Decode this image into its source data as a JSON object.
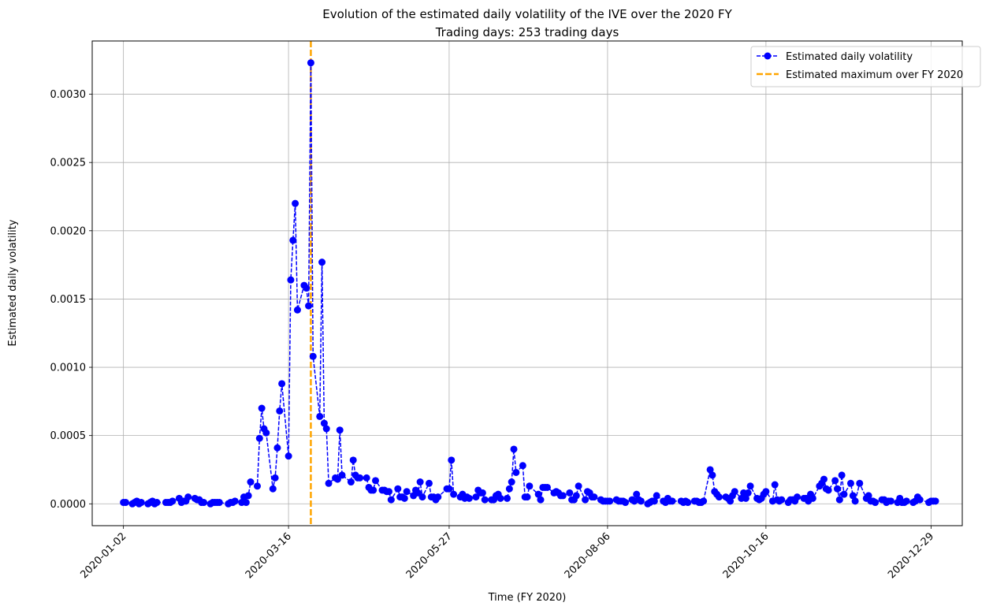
{
  "chart_data": {
    "type": "line",
    "title": "Evolution of the estimated daily volatility of the IVE over the 2020 FY",
    "subtitle": "Trading days: 253 trading days",
    "xlabel": "Time (FY 2020)",
    "ylabel": "Estimated daily volatility",
    "xlim": [
      "2019-12-19",
      "2021-01-12"
    ],
    "ylim": [
      -0.00016,
      0.00339
    ],
    "grid": true,
    "legend_position": "top-right",
    "x_ticks": [
      "2020-01-02",
      "2020-03-16",
      "2020-05-27",
      "2020-08-06",
      "2020-10-16",
      "2020-12-29"
    ],
    "y_ticks": [
      "0.0000",
      "0.0005",
      "0.0010",
      "0.0015",
      "0.0020",
      "0.0025",
      "0.0030"
    ],
    "series": [
      {
        "name": "Estimated daily volatility",
        "color": "#0000ff",
        "style": "dashed",
        "marker": "circle",
        "points": [
          [
            "2020-01-02",
            1e-05
          ],
          [
            "2020-01-03",
            1e-05
          ],
          [
            "2020-01-06",
            0.0
          ],
          [
            "2020-01-07",
            1e-05
          ],
          [
            "2020-01-08",
            2e-05
          ],
          [
            "2020-01-09",
            0.0
          ],
          [
            "2020-01-10",
            1e-05
          ],
          [
            "2020-01-13",
            0.0
          ],
          [
            "2020-01-14",
            1e-05
          ],
          [
            "2020-01-15",
            2e-05
          ],
          [
            "2020-01-16",
            0.0
          ],
          [
            "2020-01-17",
            1e-05
          ],
          [
            "2020-01-21",
            1e-05
          ],
          [
            "2020-01-22",
            1e-05
          ],
          [
            "2020-01-23",
            1e-05
          ],
          [
            "2020-01-24",
            2e-05
          ],
          [
            "2020-01-27",
            4e-05
          ],
          [
            "2020-01-28",
            1e-05
          ],
          [
            "2020-01-29",
            2e-05
          ],
          [
            "2020-01-30",
            2e-05
          ],
          [
            "2020-01-31",
            5e-05
          ],
          [
            "2020-02-03",
            4e-05
          ],
          [
            "2020-02-04",
            3e-05
          ],
          [
            "2020-02-05",
            3e-05
          ],
          [
            "2020-02-06",
            1e-05
          ],
          [
            "2020-02-07",
            1e-05
          ],
          [
            "2020-02-10",
            0.0
          ],
          [
            "2020-02-11",
            1e-05
          ],
          [
            "2020-02-12",
            1e-05
          ],
          [
            "2020-02-13",
            1e-05
          ],
          [
            "2020-02-14",
            1e-05
          ],
          [
            "2020-02-18",
            0.0
          ],
          [
            "2020-02-19",
            1e-05
          ],
          [
            "2020-02-20",
            1e-05
          ],
          [
            "2020-02-21",
            2e-05
          ],
          [
            "2020-02-24",
            1e-05
          ],
          [
            "2020-02-25",
            5e-05
          ],
          [
            "2020-02-26",
            1e-05
          ],
          [
            "2020-02-27",
            6e-05
          ],
          [
            "2020-02-28",
            0.00016
          ],
          [
            "2020-03-02",
            0.00013
          ],
          [
            "2020-03-03",
            0.00048
          ],
          [
            "2020-03-04",
            0.0007
          ],
          [
            "2020-03-05",
            0.00055
          ],
          [
            "2020-03-06",
            0.00052
          ],
          [
            "2020-03-09",
            0.00011
          ],
          [
            "2020-03-10",
            0.00019
          ],
          [
            "2020-03-11",
            0.00041
          ],
          [
            "2020-03-12",
            0.00068
          ],
          [
            "2020-03-13",
            0.00088
          ],
          [
            "2020-03-16",
            0.00035
          ],
          [
            "2020-03-17",
            0.00164
          ],
          [
            "2020-03-18",
            0.00193
          ],
          [
            "2020-03-19",
            0.0022
          ],
          [
            "2020-03-20",
            0.00142
          ],
          [
            "2020-03-23",
            0.0016
          ],
          [
            "2020-03-24",
            0.00158
          ],
          [
            "2020-03-25",
            0.00145
          ],
          [
            "2020-03-26",
            0.00323
          ],
          [
            "2020-03-27",
            0.00108
          ],
          [
            "2020-03-30",
            0.00064
          ],
          [
            "2020-03-31",
            0.00177
          ],
          [
            "2020-04-01",
            0.00059
          ],
          [
            "2020-04-02",
            0.00055
          ],
          [
            "2020-04-03",
            0.00015
          ],
          [
            "2020-04-06",
            0.00019
          ],
          [
            "2020-04-07",
            0.00018
          ],
          [
            "2020-04-08",
            0.00054
          ],
          [
            "2020-04-09",
            0.00021
          ],
          [
            "2020-04-13",
            0.00016
          ],
          [
            "2020-04-14",
            0.00032
          ],
          [
            "2020-04-15",
            0.00021
          ],
          [
            "2020-04-16",
            0.00019
          ],
          [
            "2020-04-17",
            0.00019
          ],
          [
            "2020-04-20",
            0.00019
          ],
          [
            "2020-04-21",
            0.00012
          ],
          [
            "2020-04-22",
            0.0001
          ],
          [
            "2020-04-23",
            0.0001
          ],
          [
            "2020-04-24",
            0.00017
          ],
          [
            "2020-04-27",
            0.0001
          ],
          [
            "2020-04-28",
            0.0001
          ],
          [
            "2020-04-29",
            9e-05
          ],
          [
            "2020-04-30",
            9e-05
          ],
          [
            "2020-05-01",
            3e-05
          ],
          [
            "2020-05-04",
            0.00011
          ],
          [
            "2020-05-05",
            5e-05
          ],
          [
            "2020-05-06",
            5e-05
          ],
          [
            "2020-05-07",
            4e-05
          ],
          [
            "2020-05-08",
            9e-05
          ],
          [
            "2020-05-11",
            6e-05
          ],
          [
            "2020-05-12",
            0.0001
          ],
          [
            "2020-05-13",
            8e-05
          ],
          [
            "2020-05-14",
            0.00016
          ],
          [
            "2020-05-15",
            5e-05
          ],
          [
            "2020-05-18",
            0.00015
          ],
          [
            "2020-05-19",
            5e-05
          ],
          [
            "2020-05-20",
            5e-05
          ],
          [
            "2020-05-21",
            3e-05
          ],
          [
            "2020-05-22",
            5e-05
          ],
          [
            "2020-05-26",
            0.00011
          ],
          [
            "2020-05-27",
            0.00011
          ],
          [
            "2020-05-28",
            0.00032
          ],
          [
            "2020-05-29",
            7e-05
          ],
          [
            "2020-06-01",
            5e-05
          ],
          [
            "2020-06-02",
            7e-05
          ],
          [
            "2020-06-03",
            4e-05
          ],
          [
            "2020-06-04",
            5e-05
          ],
          [
            "2020-06-05",
            4e-05
          ],
          [
            "2020-06-08",
            5e-05
          ],
          [
            "2020-06-09",
            0.0001
          ],
          [
            "2020-06-10",
            8e-05
          ],
          [
            "2020-06-11",
            8e-05
          ],
          [
            "2020-06-12",
            3e-05
          ],
          [
            "2020-06-15",
            3e-05
          ],
          [
            "2020-06-16",
            3e-05
          ],
          [
            "2020-06-17",
            6e-05
          ],
          [
            "2020-06-18",
            7e-05
          ],
          [
            "2020-06-19",
            4e-05
          ],
          [
            "2020-06-22",
            4e-05
          ],
          [
            "2020-06-23",
            0.00011
          ],
          [
            "2020-06-24",
            0.00016
          ],
          [
            "2020-06-25",
            0.0004
          ],
          [
            "2020-06-26",
            0.00023
          ],
          [
            "2020-06-29",
            0.00028
          ],
          [
            "2020-06-30",
            5e-05
          ],
          [
            "2020-07-01",
            5e-05
          ],
          [
            "2020-07-02",
            0.00013
          ],
          [
            "2020-07-06",
            7e-05
          ],
          [
            "2020-07-07",
            3e-05
          ],
          [
            "2020-07-08",
            0.00012
          ],
          [
            "2020-07-09",
            0.00012
          ],
          [
            "2020-07-10",
            0.00012
          ],
          [
            "2020-07-13",
            8e-05
          ],
          [
            "2020-07-14",
            9e-05
          ],
          [
            "2020-07-15",
            8e-05
          ],
          [
            "2020-07-16",
            6e-05
          ],
          [
            "2020-07-17",
            6e-05
          ],
          [
            "2020-07-20",
            8e-05
          ],
          [
            "2020-07-21",
            3e-05
          ],
          [
            "2020-07-22",
            3e-05
          ],
          [
            "2020-07-23",
            6e-05
          ],
          [
            "2020-07-24",
            0.00013
          ],
          [
            "2020-07-27",
            3e-05
          ],
          [
            "2020-07-28",
            9e-05
          ],
          [
            "2020-07-29",
            8e-05
          ],
          [
            "2020-07-30",
            5e-05
          ],
          [
            "2020-07-31",
            5e-05
          ],
          [
            "2020-08-03",
            3e-05
          ],
          [
            "2020-08-04",
            2e-05
          ],
          [
            "2020-08-05",
            2e-05
          ],
          [
            "2020-08-06",
            2e-05
          ],
          [
            "2020-08-07",
            2e-05
          ],
          [
            "2020-08-10",
            3e-05
          ],
          [
            "2020-08-11",
            2e-05
          ],
          [
            "2020-08-12",
            2e-05
          ],
          [
            "2020-08-13",
            2e-05
          ],
          [
            "2020-08-14",
            1e-05
          ],
          [
            "2020-08-17",
            3e-05
          ],
          [
            "2020-08-18",
            2e-05
          ],
          [
            "2020-08-19",
            7e-05
          ],
          [
            "2020-08-20",
            3e-05
          ],
          [
            "2020-08-21",
            2e-05
          ],
          [
            "2020-08-24",
            0.0
          ],
          [
            "2020-08-25",
            1e-05
          ],
          [
            "2020-08-26",
            2e-05
          ],
          [
            "2020-08-27",
            2e-05
          ],
          [
            "2020-08-28",
            6e-05
          ],
          [
            "2020-08-31",
            2e-05
          ],
          [
            "2020-09-01",
            1e-05
          ],
          [
            "2020-09-02",
            4e-05
          ],
          [
            "2020-09-03",
            2e-05
          ],
          [
            "2020-09-04",
            2e-05
          ],
          [
            "2020-09-08",
            2e-05
          ],
          [
            "2020-09-09",
            1e-05
          ],
          [
            "2020-09-10",
            2e-05
          ],
          [
            "2020-09-11",
            1e-05
          ],
          [
            "2020-09-14",
            2e-05
          ],
          [
            "2020-09-15",
            2e-05
          ],
          [
            "2020-09-16",
            1e-05
          ],
          [
            "2020-09-17",
            1e-05
          ],
          [
            "2020-09-18",
            2e-05
          ],
          [
            "2020-09-21",
            0.00025
          ],
          [
            "2020-09-22",
            0.00021
          ],
          [
            "2020-09-23",
            9e-05
          ],
          [
            "2020-09-24",
            7e-05
          ],
          [
            "2020-09-25",
            5e-05
          ],
          [
            "2020-09-28",
            5e-05
          ],
          [
            "2020-09-29",
            4e-05
          ],
          [
            "2020-09-30",
            2e-05
          ],
          [
            "2020-10-01",
            6e-05
          ],
          [
            "2020-10-02",
            9e-05
          ],
          [
            "2020-10-05",
            4e-05
          ],
          [
            "2020-10-06",
            8e-05
          ],
          [
            "2020-10-07",
            4e-05
          ],
          [
            "2020-10-08",
            8e-05
          ],
          [
            "2020-10-09",
            0.00013
          ],
          [
            "2020-10-12",
            4e-05
          ],
          [
            "2020-10-13",
            3e-05
          ],
          [
            "2020-10-14",
            4e-05
          ],
          [
            "2020-10-15",
            7e-05
          ],
          [
            "2020-10-16",
            9e-05
          ],
          [
            "2020-10-19",
            2e-05
          ],
          [
            "2020-10-20",
            0.00014
          ],
          [
            "2020-10-21",
            3e-05
          ],
          [
            "2020-10-22",
            2e-05
          ],
          [
            "2020-10-23",
            3e-05
          ],
          [
            "2020-10-26",
            1e-05
          ],
          [
            "2020-10-27",
            3e-05
          ],
          [
            "2020-10-28",
            3e-05
          ],
          [
            "2020-10-29",
            2e-05
          ],
          [
            "2020-10-30",
            5e-05
          ],
          [
            "2020-11-02",
            4e-05
          ],
          [
            "2020-11-03",
            4e-05
          ],
          [
            "2020-11-04",
            2e-05
          ],
          [
            "2020-11-05",
            7e-05
          ],
          [
            "2020-11-06",
            4e-05
          ],
          [
            "2020-11-09",
            0.00013
          ],
          [
            "2020-11-10",
            0.00015
          ],
          [
            "2020-11-11",
            0.00018
          ],
          [
            "2020-11-12",
            0.00011
          ],
          [
            "2020-11-13",
            0.0001
          ],
          [
            "2020-11-16",
            0.00017
          ],
          [
            "2020-11-17",
            0.00011
          ],
          [
            "2020-11-18",
            3e-05
          ],
          [
            "2020-11-19",
            0.00021
          ],
          [
            "2020-11-20",
            7e-05
          ],
          [
            "2020-11-23",
            0.00015
          ],
          [
            "2020-11-24",
            6e-05
          ],
          [
            "2020-11-25",
            2e-05
          ],
          [
            "2020-11-27",
            0.00015
          ],
          [
            "2020-11-30",
            4e-05
          ],
          [
            "2020-12-01",
            6e-05
          ],
          [
            "2020-12-02",
            2e-05
          ],
          [
            "2020-12-03",
            2e-05
          ],
          [
            "2020-12-04",
            1e-05
          ],
          [
            "2020-12-07",
            3e-05
          ],
          [
            "2020-12-08",
            3e-05
          ],
          [
            "2020-12-09",
            1e-05
          ],
          [
            "2020-12-10",
            2e-05
          ],
          [
            "2020-12-11",
            2e-05
          ],
          [
            "2020-12-14",
            1e-05
          ],
          [
            "2020-12-15",
            4e-05
          ],
          [
            "2020-12-16",
            1e-05
          ],
          [
            "2020-12-17",
            1e-05
          ],
          [
            "2020-12-18",
            2e-05
          ],
          [
            "2020-12-21",
            1e-05
          ],
          [
            "2020-12-22",
            2e-05
          ],
          [
            "2020-12-23",
            5e-05
          ],
          [
            "2020-12-24",
            3e-05
          ],
          [
            "2020-12-28",
            1e-05
          ],
          [
            "2020-12-29",
            2e-05
          ],
          [
            "2020-12-30",
            2e-05
          ],
          [
            "2020-12-31",
            2e-05
          ]
        ]
      },
      {
        "name": "Estimated maximum over FY 2020",
        "color": "#ffa500",
        "style": "dashed",
        "orientation": "vertical",
        "x": "2020-03-26"
      }
    ]
  }
}
